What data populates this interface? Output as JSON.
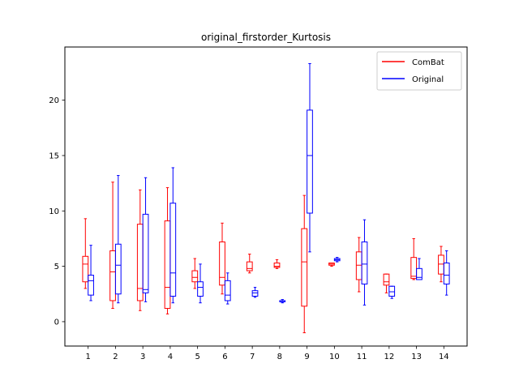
{
  "chart_data": {
    "type": "boxplot",
    "title": "original_firstorder_Kurtosis",
    "xlabel": "",
    "ylabel": "",
    "categories": [
      "1",
      "2",
      "3",
      "4",
      "5",
      "6",
      "7",
      "8",
      "9",
      "10",
      "11",
      "12",
      "13",
      "14"
    ],
    "yticks": [
      0,
      5,
      10,
      15,
      20
    ],
    "ylim": [
      -2.2,
      24.8
    ],
    "grid": false,
    "legend_position": "top-right",
    "series": [
      {
        "name": "ComBat",
        "color": "#ff0000",
        "boxes": [
          {
            "min": 3.0,
            "q1": 3.6,
            "median": 5.2,
            "q3": 5.9,
            "max": 9.3
          },
          {
            "min": 1.2,
            "q1": 1.9,
            "median": 4.5,
            "q3": 6.4,
            "max": 12.6
          },
          {
            "min": 1.0,
            "q1": 1.9,
            "median": 3.0,
            "q3": 8.8,
            "max": 11.9
          },
          {
            "min": 0.7,
            "q1": 1.2,
            "median": 3.1,
            "q3": 9.1,
            "max": 12.1
          },
          {
            "min": 3.0,
            "q1": 3.6,
            "median": 4.0,
            "q3": 4.6,
            "max": 5.7
          },
          {
            "min": 2.5,
            "q1": 3.3,
            "median": 4.0,
            "q3": 7.2,
            "max": 8.9
          },
          {
            "min": 4.4,
            "q1": 4.6,
            "median": 4.8,
            "q3": 5.4,
            "max": 6.1
          },
          {
            "min": 4.8,
            "q1": 4.9,
            "median": 5.0,
            "q3": 5.3,
            "max": 5.6
          },
          {
            "min": -1.0,
            "q1": 1.4,
            "median": 5.4,
            "q3": 8.4,
            "max": 11.4
          },
          {
            "min": 5.0,
            "q1": 5.1,
            "median": 5.2,
            "q3": 5.3,
            "max": 5.3
          },
          {
            "min": 2.7,
            "q1": 3.8,
            "median": 5.1,
            "q3": 6.3,
            "max": 7.6
          },
          {
            "min": 2.6,
            "q1": 3.3,
            "median": 3.6,
            "q3": 4.3,
            "max": 4.3
          },
          {
            "min": 3.8,
            "q1": 3.9,
            "median": 4.1,
            "q3": 5.8,
            "max": 7.5
          },
          {
            "min": 3.6,
            "q1": 4.3,
            "median": 5.2,
            "q3": 6.0,
            "max": 6.8
          }
        ]
      },
      {
        "name": "Original",
        "color": "#0000ff",
        "boxes": [
          {
            "min": 1.9,
            "q1": 2.4,
            "median": 3.7,
            "q3": 4.2,
            "max": 6.9
          },
          {
            "min": 1.7,
            "q1": 2.5,
            "median": 5.1,
            "q3": 7.0,
            "max": 13.2
          },
          {
            "min": 1.8,
            "q1": 2.6,
            "median": 2.9,
            "q3": 9.7,
            "max": 13.0
          },
          {
            "min": 1.7,
            "q1": 2.3,
            "median": 4.4,
            "q3": 10.7,
            "max": 13.9
          },
          {
            "min": 1.7,
            "q1": 2.3,
            "median": 3.1,
            "q3": 3.6,
            "max": 5.2
          },
          {
            "min": 1.6,
            "q1": 1.9,
            "median": 2.4,
            "q3": 3.7,
            "max": 4.4
          },
          {
            "min": 2.2,
            "q1": 2.3,
            "median": 2.6,
            "q3": 2.8,
            "max": 3.1
          },
          {
            "min": 1.7,
            "q1": 1.8,
            "median": 1.8,
            "q3": 1.9,
            "max": 2.0
          },
          {
            "min": 6.3,
            "q1": 9.8,
            "median": 15.0,
            "q3": 19.1,
            "max": 23.3
          },
          {
            "min": 5.4,
            "q1": 5.5,
            "median": 5.6,
            "q3": 5.7,
            "max": 5.8
          },
          {
            "min": 1.5,
            "q1": 3.4,
            "median": 5.2,
            "q3": 7.2,
            "max": 9.2
          },
          {
            "min": 2.1,
            "q1": 2.3,
            "median": 2.7,
            "q3": 3.2,
            "max": 3.2
          },
          {
            "min": 3.8,
            "q1": 3.8,
            "median": 4.0,
            "q3": 4.8,
            "max": 5.7
          },
          {
            "min": 2.4,
            "q1": 3.4,
            "median": 4.2,
            "q3": 5.3,
            "max": 6.4
          }
        ]
      }
    ]
  }
}
